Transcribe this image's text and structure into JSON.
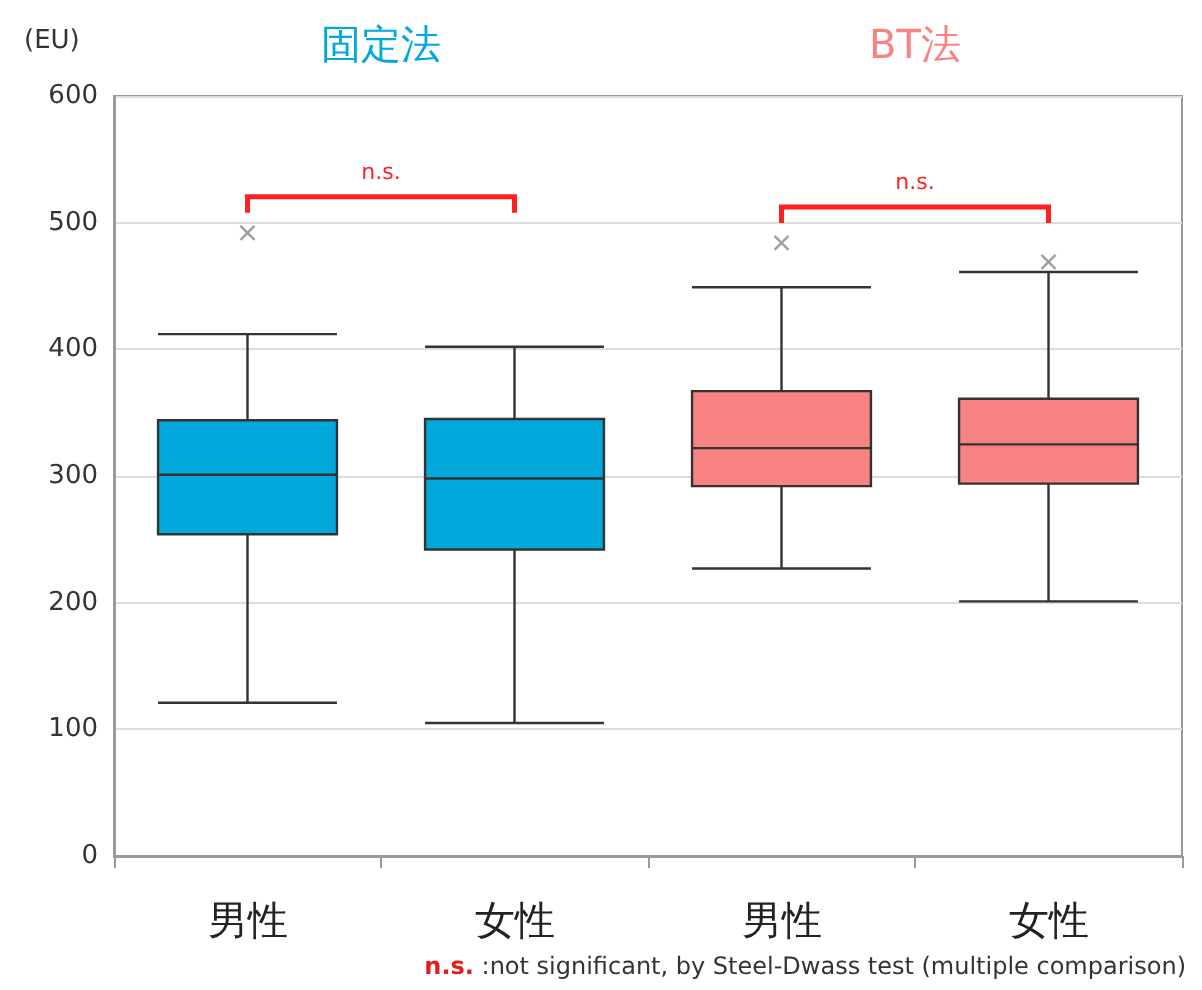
{
  "chart_data": {
    "type": "box",
    "ylabel": "(EU)",
    "categories": [
      "男性",
      "女性",
      "男性",
      "女性"
    ],
    "series": [
      {
        "name": "固定法",
        "color": "#00a8dc",
        "boxes": [
          {
            "low": 121,
            "q1": 254,
            "median": 301,
            "q3": 344,
            "high": 412,
            "outliers": [
              492
            ]
          },
          {
            "low": 105,
            "q1": 242,
            "median": 298,
            "q3": 345,
            "high": 402
          },
          null,
          null
        ]
      },
      {
        "name": "BT法",
        "color": "#f98282",
        "boxes": [
          null,
          null,
          {
            "low": 227,
            "q1": 292,
            "median": 322,
            "q3": 367,
            "high": 449,
            "outliers": [
              484
            ]
          },
          {
            "low": 201,
            "q1": 294,
            "median": 325,
            "q3": 361,
            "high": 461,
            "outliers": [
              469
            ]
          }
        ]
      }
    ],
    "ylim": [
      0,
      600
    ],
    "yticks": [
      0,
      100,
      200,
      300,
      400,
      500,
      600
    ],
    "grid": "y",
    "annotations": [
      "n.s.",
      "n.s.",
      "n.s. :not significant, by Steel-Dwass test (multiple comparison)"
    ]
  }
}
